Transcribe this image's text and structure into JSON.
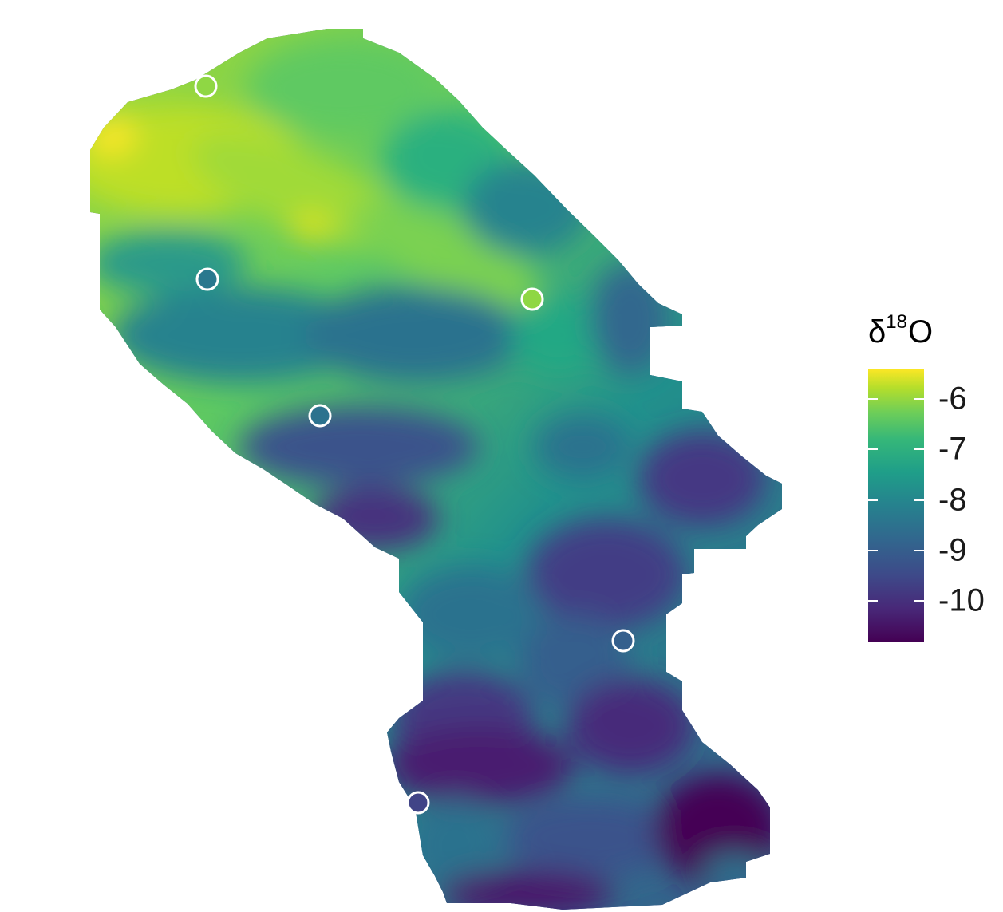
{
  "legend": {
    "symbol": "δ",
    "superscript": "18",
    "element": "O",
    "ticks": [
      {
        "label": "-6",
        "value": -6
      },
      {
        "label": "-7",
        "value": -7
      },
      {
        "label": "-8",
        "value": -8
      },
      {
        "label": "-9",
        "value": -9
      },
      {
        "label": "-10",
        "value": -10
      }
    ],
    "range": [
      -10.8,
      -5.4
    ],
    "colormap": [
      "#440154",
      "#482878",
      "#3e4989",
      "#31688e",
      "#26828e",
      "#1f9e89",
      "#35b779",
      "#6ece58",
      "#b5de2b",
      "#fde725"
    ]
  },
  "chart_data": {
    "type": "heatmap",
    "colorscale": "viridis",
    "sites": [
      {
        "value": -6.5
      },
      {
        "value": -8.6
      },
      {
        "value": -6.5
      },
      {
        "value": -8.3
      },
      {
        "value": -8.8
      },
      {
        "value": -9.7
      }
    ]
  }
}
